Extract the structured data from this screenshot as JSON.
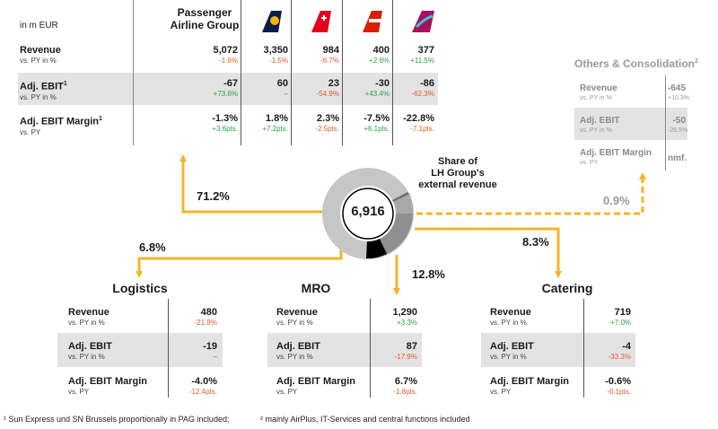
{
  "unit_label": "in m EUR",
  "pag": {
    "header": "Passenger Airline Group",
    "rows": [
      {
        "label": "Revenue",
        "sub": "vs. PY in %",
        "values": [
          {
            "v": "5,072",
            "c": "-1.6%",
            "s": "neg"
          },
          {
            "v": "3,350",
            "c": "-1.5%",
            "s": "neg"
          },
          {
            "v": "984",
            "c": "-6.7%",
            "s": "neg"
          },
          {
            "v": "400",
            "c": "+2.6%",
            "s": "pos"
          },
          {
            "v": "377",
            "c": "+11.5%",
            "s": "pos"
          }
        ]
      },
      {
        "label": "Adj. EBIT",
        "sup": "1",
        "sub": "vs. PY in %",
        "values": [
          {
            "v": "-67",
            "c": "+73.6%",
            "s": "pos"
          },
          {
            "v": "60",
            "c": "–",
            "s": "neu"
          },
          {
            "v": "23",
            "c": "-54.9%",
            "s": "neg"
          },
          {
            "v": "-30",
            "c": "+43.4%",
            "s": "pos"
          },
          {
            "v": "-86",
            "c": "-62.3%",
            "s": "neg"
          }
        ]
      },
      {
        "label": "Adj. EBIT Margin",
        "sup": "1",
        "sub": "vs. PY",
        "values": [
          {
            "v": "-1.3%",
            "c": "+3.6pts.",
            "s": "pos"
          },
          {
            "v": "1.8%",
            "c": "+7.2pts.",
            "s": "pos"
          },
          {
            "v": "2.3%",
            "c": "-2.5pts.",
            "s": "neg"
          },
          {
            "v": "-7.5%",
            "c": "+6.1pts.",
            "s": "pos"
          },
          {
            "v": "-22.8%",
            "c": "-7.1pts.",
            "s": "neg"
          }
        ]
      }
    ],
    "airlines": [
      {
        "icon": "lufthansa-tail-icon",
        "color": "#0a1d4a",
        "accent": "#f5b400"
      },
      {
        "icon": "swiss-tail-icon",
        "color": "#e2001a",
        "accent": "#ffffff"
      },
      {
        "icon": "austrian-tail-icon",
        "color": "#d81e05",
        "accent": "#ffffff"
      },
      {
        "icon": "eurowings-tail-icon",
        "color": "#a5125f",
        "accent": "#3ec1d3"
      }
    ]
  },
  "others": {
    "title": "Others & Consolidation",
    "sup": "2",
    "rows": [
      {
        "label": "Revenue",
        "sub": "vs. PY in %",
        "v": "-645",
        "c": "+10.3%"
      },
      {
        "label": "Adj. EBIT",
        "sub": "vs. PY in %",
        "v": "-50",
        "c": "-26.5%"
      },
      {
        "label": "Adj. EBIT Margin",
        "sub": "vs. PY",
        "v": "nmf.",
        "c": ""
      }
    ]
  },
  "center": {
    "total": "6,916",
    "caption": [
      "Share of",
      "LH Group's",
      "external revenue"
    ],
    "shares": {
      "pag": "71.2%",
      "logistics": "6.8%",
      "mro": "12.8%",
      "catering": "8.3%",
      "others": "0.9%"
    }
  },
  "logistics": {
    "title": "Logistics",
    "rows": [
      {
        "label": "Revenue",
        "sub": "vs. PY in %",
        "v": "480",
        "c": "-21.8%",
        "s": "neg"
      },
      {
        "label": "Adj. EBIT",
        "sub": "vs. PY in %",
        "v": "-19",
        "c": "–",
        "s": "neu"
      },
      {
        "label": "Adj. EBIT Margin",
        "sub": "vs. PY",
        "v": "-4.0%",
        "c": "-12.4pts.",
        "s": "neg"
      }
    ]
  },
  "mro": {
    "title": "MRO",
    "rows": [
      {
        "label": "Revenue",
        "sub": "vs. PY in %",
        "v": "1,290",
        "c": "+3.3%",
        "s": "pos"
      },
      {
        "label": "Adj. EBIT",
        "sub": "vs. PY in %",
        "v": "87",
        "c": "-17.9%",
        "s": "neg"
      },
      {
        "label": "Adj. EBIT Margin",
        "sub": "vs. PY",
        "v": "6.7%",
        "c": "-1.8pts.",
        "s": "neg"
      }
    ]
  },
  "catering": {
    "title": "Catering",
    "rows": [
      {
        "label": "Revenue",
        "sub": "vs. PY in %",
        "v": "719",
        "c": "+7.0%",
        "s": "pos"
      },
      {
        "label": "Adj. EBIT",
        "sub": "vs. PY in %",
        "v": "-4",
        "c": "-33.3%",
        "s": "neg"
      },
      {
        "label": "Adj. EBIT Margin",
        "sub": "vs. PY",
        "v": "-0.6%",
        "c": "-0.1pts.",
        "s": "neg"
      }
    ]
  },
  "footnotes": {
    "f1": "¹ Sun Express und SN Brussels proportionally in PAG included;",
    "f2": "² mainly AirPlus, IT-Services and central functions included"
  },
  "colors": {
    "arrow": "#f5b526",
    "donut_light": "#c6c6c6",
    "donut_mid": "#9a9a9a",
    "donut_dark": "#707070",
    "donut_black": "#000000"
  }
}
